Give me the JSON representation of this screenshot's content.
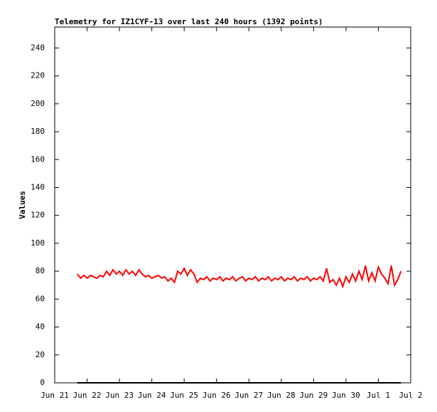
{
  "chart_data": {
    "type": "line",
    "title": "Telemetry for IZ1CYF-13 over last 240 hours (1392 points)",
    "y_label": "Values",
    "xlim": [
      0,
      11
    ],
    "xticks": [
      {
        "value": 0,
        "label": "Jun 21"
      },
      {
        "value": 1,
        "label": "Jun 22"
      },
      {
        "value": 2,
        "label": "Jun 23"
      },
      {
        "value": 3,
        "label": "Jun 24"
      },
      {
        "value": 4,
        "label": "Jun 25"
      },
      {
        "value": 5,
        "label": "Jun 26"
      },
      {
        "value": 6,
        "label": "Jun 27"
      },
      {
        "value": 7,
        "label": "Jun 28"
      },
      {
        "value": 8,
        "label": "Jun 29"
      },
      {
        "value": 9,
        "label": "Jun 30"
      },
      {
        "value": 10,
        "label": "Jul 1"
      },
      {
        "value": 11,
        "label": "Jul 2"
      }
    ],
    "ylim": [
      0,
      255
    ],
    "yticks": [
      0,
      20,
      40,
      60,
      80,
      100,
      120,
      140,
      160,
      180,
      200,
      220,
      240
    ],
    "series": [
      {
        "color": "#ff0000",
        "x": [
          0.7,
          0.8,
          0.9,
          1.0,
          1.1,
          1.2,
          1.3,
          1.4,
          1.5,
          1.6,
          1.7,
          1.8,
          1.9,
          2.0,
          2.1,
          2.2,
          2.3,
          2.4,
          2.5,
          2.6,
          2.7,
          2.8,
          2.9,
          3.0,
          3.1,
          3.2,
          3.3,
          3.4,
          3.5,
          3.6,
          3.7,
          3.8,
          3.9,
          4.0,
          4.1,
          4.2,
          4.3,
          4.4,
          4.5,
          4.6,
          4.7,
          4.8,
          4.9,
          5.0,
          5.1,
          5.2,
          5.3,
          5.4,
          5.5,
          5.6,
          5.7,
          5.8,
          5.9,
          6.0,
          6.1,
          6.2,
          6.3,
          6.4,
          6.5,
          6.6,
          6.7,
          6.8,
          6.9,
          7.0,
          7.1,
          7.2,
          7.3,
          7.4,
          7.5,
          7.6,
          7.7,
          7.8,
          7.9,
          8.0,
          8.1,
          8.2,
          8.3,
          8.4,
          8.5,
          8.6,
          8.7,
          8.8,
          8.9,
          9.0,
          9.1,
          9.2,
          9.3,
          9.4,
          9.5,
          9.6,
          9.7,
          9.8,
          9.9,
          10.0,
          10.1,
          10.2,
          10.3,
          10.4,
          10.5,
          10.6,
          10.7
        ],
        "values": [
          78,
          75,
          77,
          75,
          77,
          76,
          75,
          77,
          76,
          80,
          77,
          81,
          78,
          80,
          77,
          81,
          78,
          80,
          77,
          81,
          78,
          76,
          77,
          75,
          76,
          77,
          75,
          76,
          73,
          75,
          72,
          80,
          78,
          82,
          77,
          81,
          78,
          72,
          75,
          74,
          76,
          73,
          75,
          74,
          76,
          73,
          75,
          74,
          76,
          73,
          75,
          76,
          73,
          75,
          74,
          76,
          73,
          75,
          74,
          76,
          73,
          75,
          74,
          76,
          73,
          75,
          74,
          76,
          73,
          75,
          74,
          76,
          73,
          75,
          74,
          76,
          73,
          82,
          72,
          74,
          70,
          75,
          69,
          76,
          72,
          78,
          73,
          80,
          74,
          84,
          73,
          79,
          73,
          83,
          78,
          75,
          71,
          84,
          70,
          74,
          80
        ]
      },
      {
        "color": "#000000",
        "x": [
          0.7,
          10.7
        ],
        "values": [
          0,
          0
        ]
      }
    ]
  }
}
